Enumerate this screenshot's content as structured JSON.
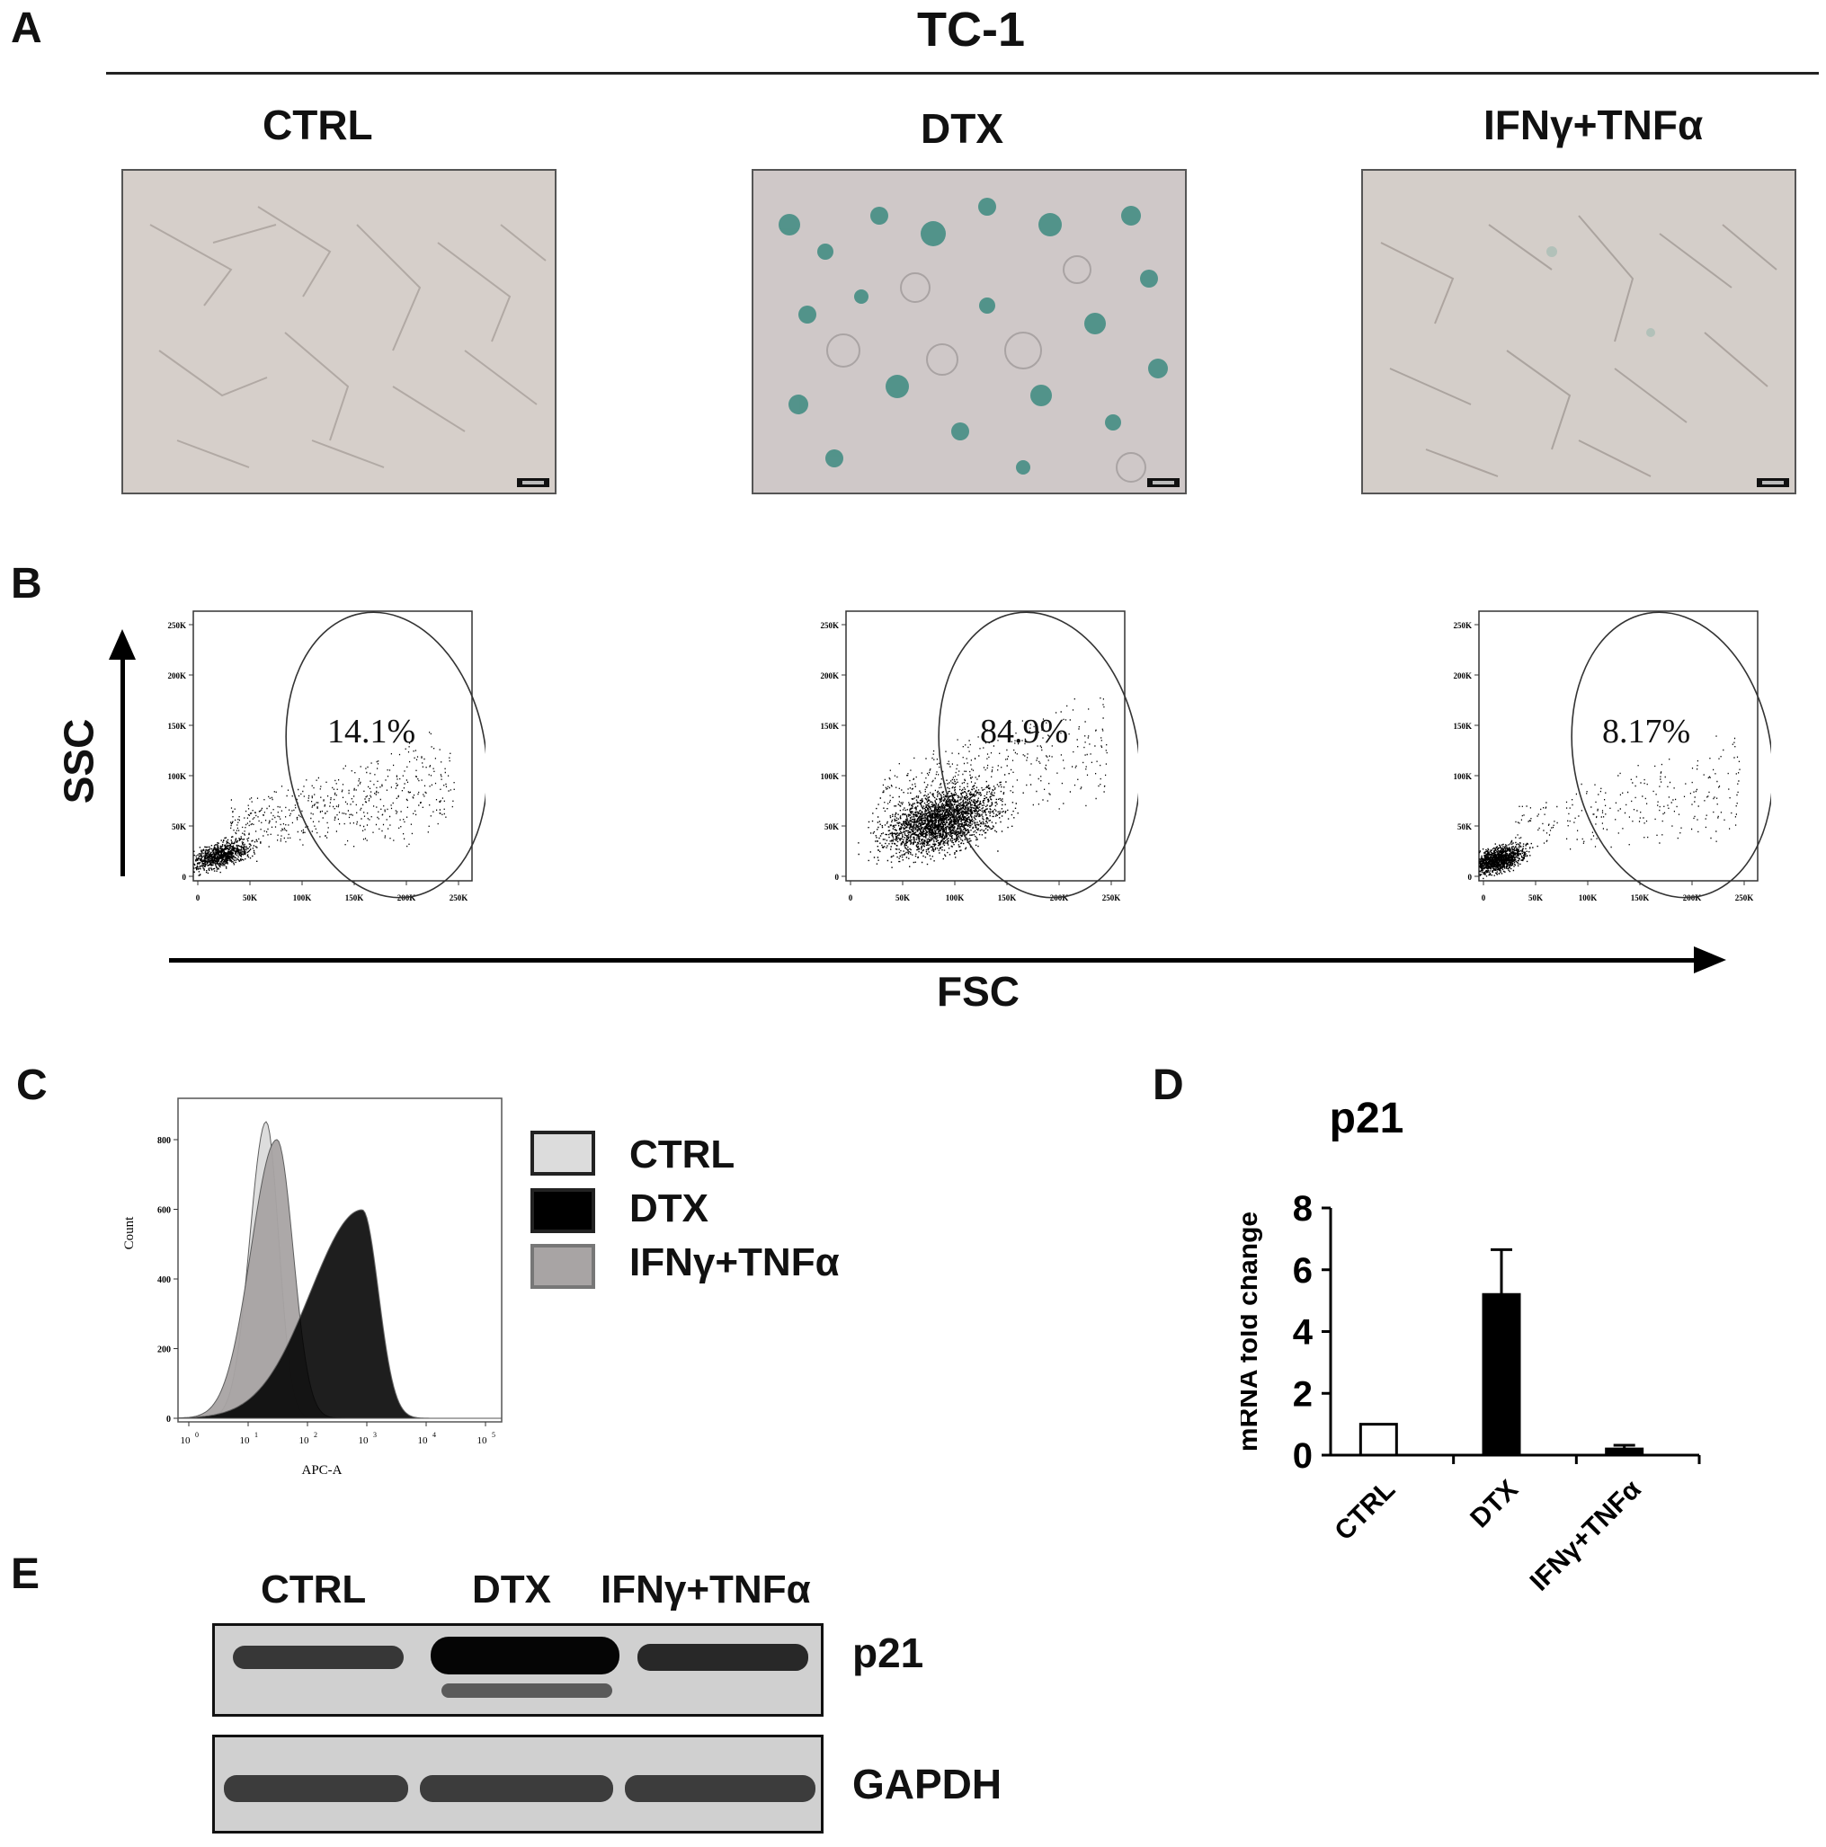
{
  "panels": {
    "A": "A",
    "B": "B",
    "C": "C",
    "D": "D",
    "E": "E"
  },
  "panel_a": {
    "title": "TC-1",
    "conditions": [
      "CTRL",
      "DTX",
      "IFNγ+TNFα"
    ]
  },
  "panel_b": {
    "y_axis": "SSC",
    "x_axis": "FSC",
    "y_ticks": [
      "250K",
      "200K",
      "150K",
      "100K",
      "50K",
      "0"
    ],
    "x_ticks": [
      "0",
      "50K",
      "100K",
      "150K",
      "200K",
      "250K"
    ],
    "gate_percentages": [
      "14.1%",
      "84.9%",
      "8.17%"
    ]
  },
  "panel_c": {
    "ylabel": "Count",
    "xlabel": "APC-A",
    "y_ticks": [
      "800",
      "600",
      "400",
      "200",
      "0"
    ],
    "x_ticks": [
      {
        "base": "10",
        "exp": "0"
      },
      {
        "base": "10",
        "exp": "1"
      },
      {
        "base": "10",
        "exp": "2"
      },
      {
        "base": "10",
        "exp": "3"
      },
      {
        "base": "10",
        "exp": "4"
      },
      {
        "base": "10",
        "exp": "5"
      }
    ],
    "legend": [
      "CTRL",
      "DTX",
      "IFNγ+TNFα"
    ],
    "colors": {
      "CTRL": "#dcdcdc",
      "DTX": "#000000",
      "IFNγ+TNFα": "#a8a4a4"
    }
  },
  "chart_data": {
    "type": "bar",
    "title": "p21",
    "ylabel": "mRNA fold change",
    "xlabel": "",
    "categories": [
      "CTRL",
      "DTX",
      "IFNγ+TNFα"
    ],
    "values": [
      1.0,
      5.2,
      0.2
    ],
    "errors": [
      0.0,
      1.45,
      0.12
    ],
    "ylim": [
      0,
      8
    ],
    "yticks": [
      "0",
      "2",
      "4",
      "6",
      "8"
    ],
    "bar_colors": [
      "#ffffff",
      "#000000",
      "#000000"
    ]
  },
  "panel_e": {
    "lanes": [
      "CTRL",
      "DTX",
      "IFNγ+TNFα"
    ],
    "bands": [
      "p21",
      "GAPDH"
    ]
  }
}
